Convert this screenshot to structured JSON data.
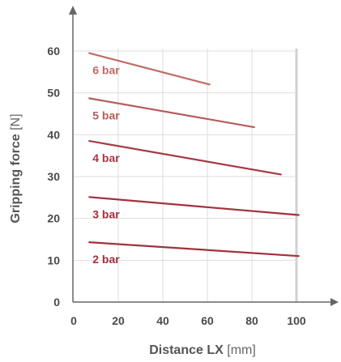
{
  "chart_data": {
    "type": "line",
    "xlabel": "Distance LX",
    "xlabel_unit": "[mm]",
    "ylabel": "Gripping force",
    "ylabel_unit": "[N]",
    "xlim": [
      0,
      100
    ],
    "ylim": [
      0,
      60
    ],
    "x_ticks": [
      "0",
      "20",
      "40",
      "60",
      "80",
      "100"
    ],
    "y_ticks": [
      "0",
      "10",
      "20",
      "30",
      "40",
      "50",
      "60"
    ],
    "grid": true,
    "series": [
      {
        "name": "6 bar",
        "color": "#c26a64",
        "x": [
          7,
          61
        ],
        "y": [
          59.5,
          52
        ]
      },
      {
        "name": "5 bar",
        "color": "#b65c5c",
        "x": [
          7,
          81
        ],
        "y": [
          48.7,
          41.8
        ]
      },
      {
        "name": "4 bar",
        "color": "#a43a44",
        "x": [
          7,
          93
        ],
        "y": [
          38.5,
          30.5
        ]
      },
      {
        "name": "3 bar",
        "color": "#a3303c",
        "x": [
          7,
          101
        ],
        "y": [
          25.1,
          20.8
        ]
      },
      {
        "name": "2 bar",
        "color": "#a3303c",
        "x": [
          7,
          101
        ],
        "y": [
          14.3,
          11.0
        ]
      }
    ]
  }
}
